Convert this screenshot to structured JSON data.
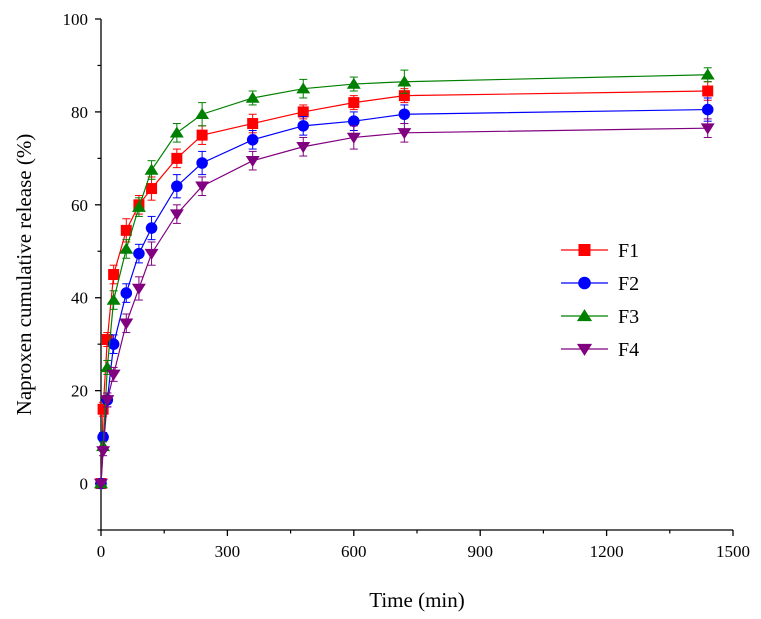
{
  "chart_data": {
    "type": "line",
    "title": "",
    "xlabel": "Time (min)",
    "ylabel": "Naproxen cumulative release (%)",
    "xlim": [
      0,
      1500
    ],
    "ylim": [
      -10,
      100
    ],
    "xticks": [
      0,
      300,
      600,
      900,
      1200,
      1500
    ],
    "yticks": [
      0,
      20,
      40,
      60,
      80,
      100
    ],
    "grid": false,
    "legend_position": "center-right",
    "x": [
      0,
      5,
      15,
      30,
      60,
      90,
      120,
      180,
      240,
      360,
      480,
      600,
      720,
      1440
    ],
    "series": [
      {
        "name": "F1",
        "color": "#ff0000",
        "marker": "square",
        "values": [
          0,
          16,
          31,
          45,
          54.5,
          60,
          63.5,
          70,
          75,
          77.5,
          80,
          82,
          83.5,
          84.5
        ],
        "errors": [
          0,
          1.5,
          1.5,
          2,
          2.5,
          2,
          2.5,
          2,
          2,
          2,
          1.5,
          1.5,
          1.5,
          2
        ]
      },
      {
        "name": "F2",
        "color": "#0000ff",
        "marker": "circle",
        "values": [
          0,
          10,
          18,
          30,
          41,
          49.5,
          55,
          64,
          69,
          74,
          77,
          78,
          79.5,
          80.5
        ],
        "errors": [
          0,
          1,
          1.5,
          2,
          2,
          2,
          2.5,
          2.5,
          2.5,
          2,
          2,
          2,
          2,
          2.5
        ]
      },
      {
        "name": "F3",
        "color": "#008000",
        "marker": "triangle-up",
        "values": [
          0,
          8,
          25,
          39.5,
          50.5,
          59.5,
          67.5,
          75.5,
          79.5,
          83,
          85,
          86,
          86.5,
          88
        ],
        "errors": [
          0,
          1,
          1.5,
          2,
          2,
          2,
          2,
          2,
          2.5,
          1.5,
          2,
          1.5,
          2.5,
          1.5
        ]
      },
      {
        "name": "F4",
        "color": "#800080",
        "marker": "triangle-down",
        "values": [
          0,
          7,
          18,
          23.5,
          34.5,
          42,
          49.5,
          58,
          64,
          69.5,
          72.5,
          74.5,
          75.5,
          76.5
        ],
        "errors": [
          0,
          1,
          1.5,
          1.5,
          2,
          2.5,
          2.5,
          2,
          2,
          2,
          2,
          2.5,
          2,
          2
        ]
      }
    ]
  }
}
